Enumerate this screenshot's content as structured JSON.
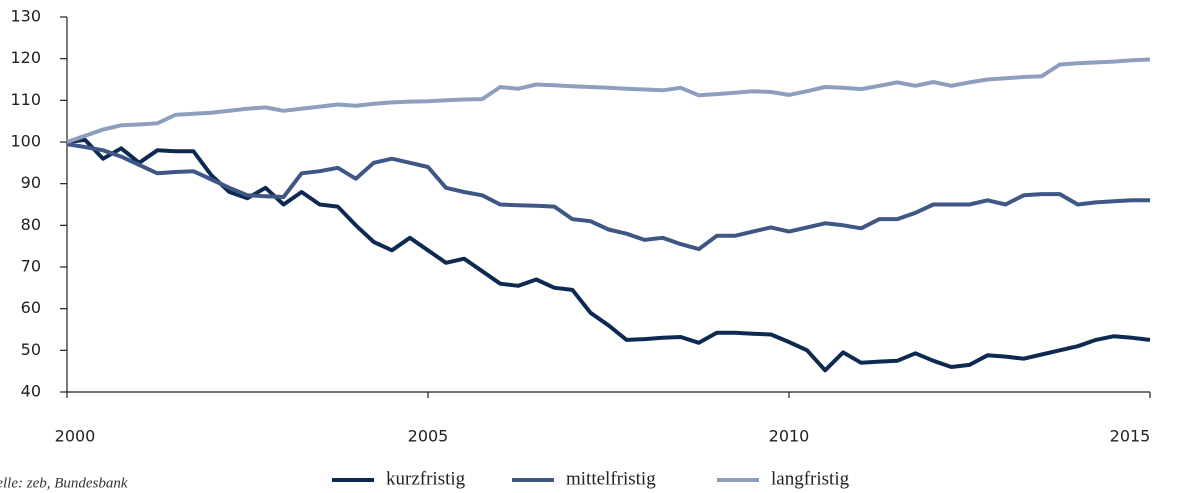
{
  "chart_data": {
    "type": "line",
    "annotation": "Quelle: zeb, Bundesbank",
    "x": [
      2000,
      2000.25,
      2000.5,
      2000.75,
      2001,
      2001.25,
      2001.5,
      2001.75,
      2002,
      2002.25,
      2002.5,
      2002.75,
      2003,
      2003.25,
      2003.5,
      2003.75,
      2004,
      2004.25,
      2004.5,
      2004.75,
      2005,
      2005.25,
      2005.5,
      2005.75,
      2006,
      2006.25,
      2006.5,
      2006.75,
      2007,
      2007.25,
      2007.5,
      2007.75,
      2008,
      2008.25,
      2008.5,
      2008.75,
      2009,
      2009.25,
      2009.5,
      2009.75,
      2010,
      2010.25,
      2010.5,
      2010.75,
      2011,
      2011.25,
      2011.5,
      2011.75,
      2012,
      2012.25,
      2012.5,
      2012.75,
      2013,
      2013.25,
      2013.5,
      2013.75,
      2014,
      2014.25,
      2014.5,
      2014.75,
      2015
    ],
    "series": [
      {
        "name": "kurzfristig",
        "color": "#0e2a53",
        "values": [
          100,
          100.5,
          96,
          98.5,
          95,
          98,
          97.8,
          97.8,
          92,
          88,
          86.5,
          89,
          85,
          88,
          85,
          84.5,
          80,
          76,
          74,
          77,
          74,
          71,
          72,
          69,
          66,
          65.5,
          67,
          65,
          64.5,
          59,
          56,
          52.5,
          52.7,
          53,
          53.2,
          51.8,
          54.2,
          54.2,
          54,
          53.8,
          52,
          50,
          45.2,
          49.5,
          47,
          47.3,
          47.5,
          49.3,
          47.5,
          46,
          46.5,
          48.8,
          48.5,
          48,
          49,
          50,
          51,
          52.5,
          53.4,
          53,
          52.5
        ]
      },
      {
        "name": "mittelfristig",
        "color": "#3e5784",
        "values": [
          99.5,
          98.8,
          98,
          96.5,
          94.5,
          92.5,
          92.8,
          93,
          91,
          89,
          87.2,
          87,
          86.8,
          92.5,
          93,
          93.8,
          91.2,
          95,
          96,
          95,
          94,
          89,
          88,
          87.2,
          85,
          84.8,
          84.7,
          84.5,
          81.5,
          81,
          79,
          78,
          76.5,
          77,
          75.5,
          74.3,
          77.5,
          77.5,
          78.5,
          79.5,
          78.5,
          79.5,
          80.5,
          80,
          79.3,
          81.5,
          81.5,
          83,
          85,
          85,
          85,
          86,
          85,
          87.2,
          87.5,
          87.5,
          85,
          85.5,
          85.8,
          86,
          86
        ]
      },
      {
        "name": "langfristig",
        "color": "#8e9ebe",
        "values": [
          100,
          101.5,
          103,
          104,
          104.2,
          104.5,
          106.5,
          106.8,
          107,
          107.5,
          108,
          108.3,
          107.5,
          108,
          108.5,
          109,
          108.7,
          109.2,
          109.5,
          109.7,
          109.8,
          110,
          110.2,
          110.3,
          113.2,
          112.8,
          113.8,
          113.6,
          113.4,
          113.2,
          113,
          112.8,
          112.6,
          112.4,
          113,
          111.2,
          111.5,
          111.8,
          112.2,
          112,
          111.3,
          112.2,
          113.2,
          113,
          112.7,
          113.5,
          114.3,
          113.5,
          114.4,
          113.5,
          114.3,
          115,
          115.3,
          115.6,
          115.8,
          118.6,
          118.9,
          119.1,
          119.3,
          119.6,
          119.8
        ]
      }
    ],
    "xlim": [
      2000,
      2015
    ],
    "xticks": [
      2000,
      2005,
      2010,
      2015
    ],
    "ylim": [
      40,
      130
    ],
    "yticks": [
      40,
      50,
      60,
      70,
      80,
      90,
      100,
      110,
      120,
      130
    ],
    "grid": false,
    "legend": "bottom"
  }
}
